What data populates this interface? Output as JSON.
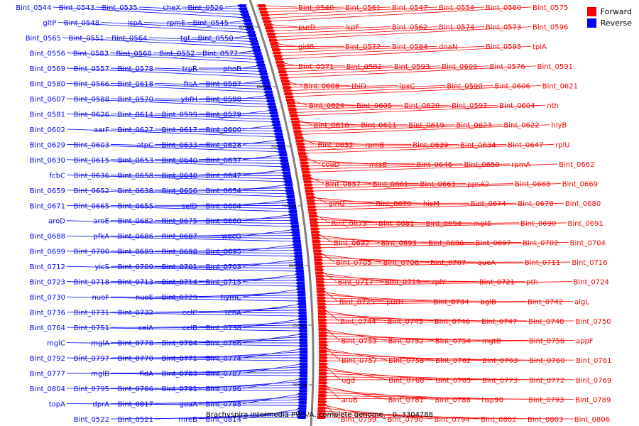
{
  "colors": {
    "forward": "#ff0000",
    "reverse": "#0000ff",
    "backbone": "#808080"
  },
  "legend": [
    {
      "label": "Forward",
      "color": "#ff0000"
    },
    {
      "label": "Reverse",
      "color": "#0000ff"
    }
  ],
  "caption": "Brachyspira intermedia PWS/A, complete genome. - 0..3304788",
  "scale_labels": [
    "600 kbp",
    "650 kbp",
    "700 kbp",
    "750 kbp",
    "800 kbp",
    "850 kbp",
    "900 kbp"
  ],
  "reverse_features": [
    "Bint_0526",
    "cheX",
    "Bint_0535",
    "Bint_0543",
    "Bint_0544",
    "Bint_0545",
    "rpmE",
    "ispA",
    "Bint_0548",
    "gltP",
    "Bint_0550",
    "tgt",
    "Bint_0564",
    "Bint_0551",
    "Bint_0565",
    "Bint_0577",
    "Bint_0552",
    "Bint_0568",
    "Bint_0583",
    "Bint_0556",
    "phoB",
    "trpR",
    "Bint_0578",
    "Bint_0557",
    "Bint_0569",
    "Bint_0587",
    "ftsA",
    "Bint_0618",
    "Bint_0566",
    "Bint_0580",
    "Bint_0598",
    "ybfH",
    "Bint_0570",
    "Bint_0588",
    "Bint_0607",
    "Bint_0579",
    "Bint_0599",
    "Bint_0614",
    "Bint_0626",
    "Bint_0581",
    "Bint_0600",
    "Bint_0617",
    "Bint_0627",
    "aarF",
    "Bint_0602",
    "Bint_0628",
    "Bint_0633",
    "atpC",
    "Bint_0603",
    "Bint_0629",
    "Bint_0637",
    "Bint_0640",
    "Bint_0653",
    "Bint_0615",
    "Bint_0630",
    "Bint_0642",
    "Bint_0648",
    "Bint_0658",
    "Bint_0636",
    "fcbC",
    "Bint_0654",
    "Bint_0656",
    "Bint_0638",
    "Bint_0652",
    "Bint_0659",
    "Bint_0664",
    "selD",
    "Bint_0655",
    "Bint_0665",
    "Bint_0671",
    "Bint_0660",
    "Bint_0675",
    "Bint_0682",
    "aroE",
    "aroD",
    "wecG",
    "Bint_0687",
    "Bint_0686",
    "pfkA",
    "Bint_0688",
    "Bint_0695",
    "Bint_0698",
    "Bint_0689",
    "Bint_0700",
    "Bint_0699",
    "Bint_0703",
    "Bint_0701",
    "Bint_0709",
    "yicS",
    "Bint_0712",
    "Bint_0715",
    "Bint_0714",
    "Bint_0713",
    "Bint_0718",
    "Bint_0723",
    "hymC",
    "Bint_0729",
    "nuoE",
    "nuoF",
    "Bint_0730",
    "tenA",
    "celC",
    "Bint_0732",
    "Bint_0731",
    "Bint_0736",
    "Bint_0738",
    "celB",
    "celA",
    "Bint_0751",
    "Bint_0764",
    "Bint_0766",
    "Bint_0784",
    "Bint_0778",
    "mglA",
    "mglC",
    "Bint_0774",
    "Bint_0771",
    "Bint_0770",
    "Bint_0797",
    "Bint_0792",
    "Bint_0787",
    "Bint_0783",
    "fldA",
    "mglB",
    "Bint_0777",
    "Bint_0796",
    "Bint_0791",
    "Bint_0786",
    "Bint_0795",
    "Bint_0804",
    "Bint_0798",
    "guaA",
    "Bint_0817",
    "dprA",
    "topA",
    "Bint_0814",
    "mreB",
    "Bint_0521",
    "Bint_0522"
  ],
  "forward_features": [
    "Bint_0540",
    "Bint_0561",
    "Bint_0547",
    "Bint_0554",
    "Bint_0560",
    "Bint_0575",
    "purD",
    "ispF",
    "Bint_0562",
    "Bint_0574",
    "Bint_0573",
    "Bint_0596",
    "gidB",
    "Bint_0572",
    "Bint_0584",
    "dnaN",
    "Bint_0595",
    "tpiA",
    "Bint_0571",
    "Bint_0582",
    "Bint_0593",
    "Bint_0609",
    "Bint_0576",
    "Bint_0591",
    "Bint_0608",
    "thiD",
    "lpxC",
    "Bint_0590",
    "Bint_0606",
    "Bint_0621",
    "Bint_0624",
    "Bint_0605",
    "Bint_0620",
    "Bint_0597",
    "Bint_0604",
    "nth",
    "Bint_0616",
    "Bint_0611",
    "Bint_0619",
    "Bint_0623",
    "Bint_0622",
    "hlyB",
    "Bint_0632",
    "rpmB",
    "Bint_0639",
    "Bint_0634",
    "Bint_0647",
    "rplU",
    "coaD",
    "miaB",
    "Bint_0646",
    "Bint_0650",
    "rpmA",
    "Bint_0662",
    "Bint_0657",
    "Bint_0661",
    "Bint_0663",
    "ppsA2",
    "Bint_0668",
    "Bint_0669",
    "glnQ",
    "Bint_0670",
    "hisM",
    "Bint_0674",
    "Bint_0678",
    "Bint_0680",
    "Bint_0679",
    "Bint_0681",
    "Bint_0694",
    "mgtE",
    "Bint_0690",
    "Bint_0691",
    "Bint_0692",
    "Bint_0693",
    "Bint_0696",
    "Bint_0697",
    "Bint_0702",
    "Bint_0704",
    "Bint_0705",
    "Bint_0706",
    "Bint_0707",
    "queA",
    "Bint_0711",
    "Bint_0716",
    "Bint_0717",
    "Bint_0719",
    "rplY",
    "Bint_0721",
    "pth",
    "Bint_0724",
    "Bint_0725",
    "purH",
    "Bint_0734",
    "bglB",
    "Bint_0742",
    "algL",
    "Bint_0744",
    "Bint_0745",
    "Bint_0746",
    "Bint_0747",
    "Bint_0748",
    "Bint_0750",
    "Bint_0753",
    "Bint_0752",
    "Bint_0754",
    "mgtB",
    "Bint_0756",
    "appF",
    "Bint_0757",
    "Bint_0758",
    "Bint_0762",
    "Bint_0763",
    "Bint_0760",
    "Bint_0761",
    "ugd",
    "Bint_0768",
    "Bint_0765",
    "Bint_0773",
    "Bint_0772",
    "Bint_0769",
    "aroB",
    "Bint_0781",
    "Bint_0788",
    "hsp90",
    "Bint_0793",
    "Bint_0789",
    "Bint_0799",
    "Bint_0790",
    "Bint_0794",
    "Bint_0802",
    "Bint_0803",
    "Bint_0806"
  ]
}
